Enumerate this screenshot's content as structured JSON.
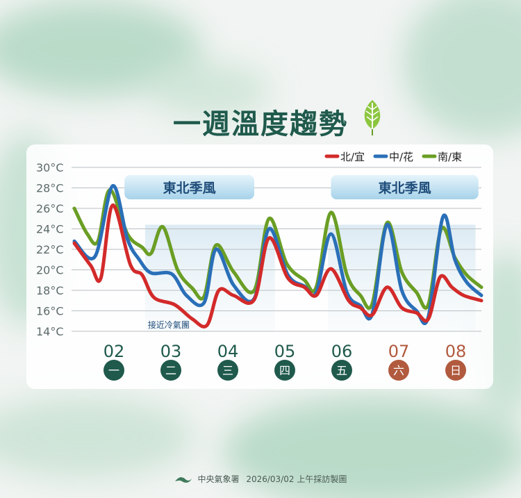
{
  "header": {
    "title": "一週溫度趨勢",
    "leaf_icon": "leaf-icon"
  },
  "footer": {
    "agency": "中央氣象署",
    "stamp": "2026/03/02 上午採訪製圖"
  },
  "chart_data": {
    "type": "line",
    "ylim": [
      14,
      30
    ],
    "yticks": [
      "30°C",
      "28°C",
      "26°C",
      "24°C",
      "22°C",
      "20°C",
      "18°C",
      "16°C",
      "14°C"
    ],
    "ytick_values": [
      30,
      28,
      26,
      24,
      22,
      20,
      18,
      16,
      14
    ],
    "xlim": [
      0,
      7
    ],
    "days": [
      {
        "date": "02",
        "weekday": "一",
        "weekend": false
      },
      {
        "date": "03",
        "weekday": "二",
        "weekend": false
      },
      {
        "date": "04",
        "weekday": "三",
        "weekend": false
      },
      {
        "date": "05",
        "weekday": "四",
        "weekend": false
      },
      {
        "date": "06",
        "weekday": "五",
        "weekend": false
      },
      {
        "date": "07",
        "weekday": "六",
        "weekend": true
      },
      {
        "date": "08",
        "weekday": "日",
        "weekend": true
      }
    ],
    "legend": {
      "placement": "top-right"
    },
    "colors": {
      "weekday_badge": "#1f5a4c",
      "weekend_badge": "#b15a3e",
      "weekend_text": "#b15a3e",
      "weekday_text": "#1f5a4c"
    },
    "series": [
      {
        "name": "北/宜",
        "color": "#d32a2a",
        "points": [
          [
            0,
            22.6
          ],
          [
            0.28,
            20.4
          ],
          [
            0.45,
            19.2
          ],
          [
            0.65,
            26.3
          ],
          [
            0.95,
            20.5
          ],
          [
            1.15,
            19.5
          ],
          [
            1.35,
            17.3
          ],
          [
            1.7,
            16.6
          ],
          [
            2.0,
            15.2
          ],
          [
            2.25,
            14.6
          ],
          [
            2.45,
            18.0
          ],
          [
            2.7,
            17.5
          ],
          [
            3.05,
            17.1
          ],
          [
            3.3,
            23.1
          ],
          [
            3.62,
            19.2
          ],
          [
            3.9,
            18.3
          ],
          [
            4.1,
            17.5
          ],
          [
            4.35,
            20.1
          ],
          [
            4.65,
            17.0
          ],
          [
            4.85,
            16.3
          ],
          [
            5.05,
            15.6
          ],
          [
            5.3,
            18.3
          ],
          [
            5.55,
            16.3
          ],
          [
            5.8,
            15.8
          ],
          [
            6.0,
            15.2
          ],
          [
            6.2,
            19.3
          ],
          [
            6.4,
            18.3
          ],
          [
            6.6,
            17.5
          ],
          [
            6.9,
            17.0
          ]
        ]
      },
      {
        "name": "中/花",
        "color": "#2a6fb8",
        "points": [
          [
            0,
            22.8
          ],
          [
            0.35,
            21.3
          ],
          [
            0.65,
            28.2
          ],
          [
            0.9,
            23.0
          ],
          [
            1.1,
            21.0
          ],
          [
            1.3,
            19.7
          ],
          [
            1.65,
            19.6
          ],
          [
            1.9,
            17.5
          ],
          [
            2.2,
            16.8
          ],
          [
            2.4,
            22.0
          ],
          [
            2.7,
            18.5
          ],
          [
            3.05,
            17.2
          ],
          [
            3.3,
            24.0
          ],
          [
            3.62,
            19.5
          ],
          [
            3.9,
            18.4
          ],
          [
            4.1,
            17.8
          ],
          [
            4.35,
            23.5
          ],
          [
            4.62,
            17.8
          ],
          [
            4.85,
            16.5
          ],
          [
            5.05,
            15.7
          ],
          [
            5.3,
            24.4
          ],
          [
            5.55,
            18.0
          ],
          [
            5.8,
            16.0
          ],
          [
            6.0,
            15.4
          ],
          [
            6.25,
            25.2
          ],
          [
            6.45,
            21.0
          ],
          [
            6.65,
            18.8
          ],
          [
            6.9,
            17.5
          ]
        ]
      },
      {
        "name": "南/東",
        "color": "#6a9e24",
        "points": [
          [
            0,
            26.0
          ],
          [
            0.22,
            23.5
          ],
          [
            0.4,
            22.8
          ],
          [
            0.6,
            27.8
          ],
          [
            0.9,
            23.5
          ],
          [
            1.15,
            22.2
          ],
          [
            1.3,
            21.6
          ],
          [
            1.5,
            24.2
          ],
          [
            1.75,
            20.0
          ],
          [
            2.0,
            18.2
          ],
          [
            2.2,
            17.4
          ],
          [
            2.4,
            22.4
          ],
          [
            2.7,
            19.8
          ],
          [
            3.05,
            18.0
          ],
          [
            3.3,
            25.0
          ],
          [
            3.6,
            20.6
          ],
          [
            3.9,
            19.0
          ],
          [
            4.1,
            18.3
          ],
          [
            4.35,
            25.6
          ],
          [
            4.62,
            19.5
          ],
          [
            4.85,
            17.5
          ],
          [
            5.05,
            16.7
          ],
          [
            5.3,
            24.6
          ],
          [
            5.55,
            19.8
          ],
          [
            5.8,
            17.8
          ],
          [
            6.0,
            16.6
          ],
          [
            6.22,
            24.0
          ],
          [
            6.45,
            21.2
          ],
          [
            6.65,
            19.5
          ],
          [
            6.9,
            18.3
          ]
        ]
      }
    ],
    "annotations": [
      {
        "text": "東北季風",
        "x_from": 0.85,
        "x_to": 3.05,
        "type": "banner"
      },
      {
        "text": "東北季風",
        "x_from": 4.35,
        "x_to": 6.85,
        "type": "banner"
      },
      {
        "text": "接近冷氣團",
        "x_from": 1.2,
        "x_to": 3.4,
        "type": "shaded-region"
      },
      {
        "text": "",
        "x_from": 4.3,
        "x_to": 6.8,
        "type": "shaded-region"
      }
    ]
  }
}
